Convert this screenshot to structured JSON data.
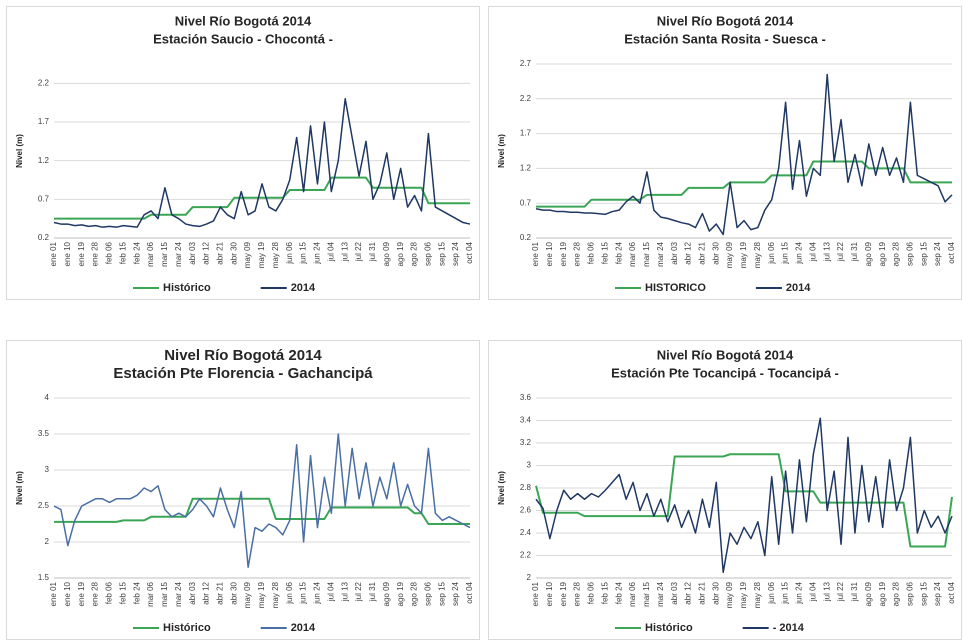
{
  "chart_data": [
    {
      "type": "line",
      "title": "Nivel Río Bogotá  2014",
      "subtitle": "Estación Saucio - Chocontá -",
      "ylabel": "Nivel (m)",
      "categories": [
        "ene 01",
        null,
        "ene 10",
        null,
        "ene 19",
        null,
        "ene 28",
        null,
        "feb 06",
        null,
        "feb 15",
        null,
        "feb 24",
        null,
        "mar 06",
        null,
        "mar 15",
        null,
        "mar 24",
        null,
        "abr 03",
        null,
        "abr 12",
        null,
        "abr 21",
        null,
        "abr 30",
        null,
        "may 09",
        null,
        "may 19",
        null,
        "may 28",
        null,
        "jun 06",
        null,
        "jun 15",
        null,
        "jun 24",
        null,
        "jul 04",
        null,
        "jul 13",
        null,
        "jul 22",
        null,
        "jul 31",
        null,
        "ago 09",
        null,
        "ago 19",
        null,
        "ago 28",
        null,
        "sep 06",
        null,
        "sep 15",
        null,
        "sep 24",
        null,
        "oct 04"
      ],
      "series": [
        {
          "name": "Histórico",
          "color": "#3aa655",
          "values": [
            0.45,
            0.45,
            0.45,
            0.45,
            0.45,
            0.45,
            0.45,
            0.45,
            0.45,
            0.45,
            0.45,
            0.45,
            0.45,
            0.45,
            0.5,
            0.5,
            0.5,
            0.5,
            0.5,
            0.5,
            0.6,
            0.6,
            0.6,
            0.6,
            0.6,
            0.6,
            0.72,
            0.72,
            0.72,
            0.72,
            0.72,
            0.72,
            0.72,
            0.72,
            0.82,
            0.82,
            0.82,
            0.82,
            0.82,
            0.82,
            0.98,
            0.98,
            0.98,
            0.98,
            0.98,
            0.98,
            0.85,
            0.85,
            0.85,
            0.85,
            0.85,
            0.85,
            0.85,
            0.85,
            0.65,
            0.65,
            0.65,
            0.65,
            0.65,
            0.65,
            0.65
          ]
        },
        {
          "name": "2014",
          "color": "#1f3864",
          "values": [
            0.4,
            0.38,
            0.38,
            0.36,
            0.37,
            0.35,
            0.36,
            0.34,
            0.35,
            0.34,
            0.36,
            0.35,
            0.34,
            0.5,
            0.55,
            0.45,
            0.85,
            0.5,
            0.45,
            0.38,
            0.36,
            0.35,
            0.38,
            0.42,
            0.6,
            0.5,
            0.45,
            0.8,
            0.5,
            0.55,
            0.9,
            0.6,
            0.55,
            0.7,
            0.95,
            1.5,
            0.8,
            1.65,
            0.9,
            1.7,
            0.8,
            1.2,
            2.0,
            1.5,
            1.0,
            1.45,
            0.7,
            0.9,
            1.3,
            0.7,
            1.1,
            0.6,
            0.75,
            0.55,
            1.55,
            0.6,
            0.55,
            0.5,
            0.45,
            0.4,
            0.38
          ]
        }
      ],
      "ylim": [
        0.2,
        2.45
      ],
      "yticks": [
        0.2,
        0.7,
        1.2,
        1.7,
        2.2
      ],
      "grid": true
    },
    {
      "type": "line",
      "title": "Nivel Río Bogotá 2014",
      "subtitle": "Estación Santa Rosita - Suesca -",
      "ylabel": "Nivel (m)",
      "categories": [
        "ene 01",
        null,
        "ene 10",
        null,
        "ene 19",
        null,
        "ene 28",
        null,
        "feb 06",
        null,
        "feb 15",
        null,
        "feb 24",
        null,
        "mar 06",
        null,
        "mar 15",
        null,
        "mar 24",
        null,
        "abr 03",
        null,
        "abr 12",
        null,
        "abr 21",
        null,
        "abr 30",
        null,
        "may 09",
        null,
        "may 19",
        null,
        "may 28",
        null,
        "jun 06",
        null,
        "jun 15",
        null,
        "jun 24",
        null,
        "jul 04",
        null,
        "jul 13",
        null,
        "jul 22",
        null,
        "jul 31",
        null,
        "ago 09",
        null,
        "ago 19",
        null,
        "ago 28",
        null,
        "sep 06",
        null,
        "sep 15",
        null,
        "sep 24",
        null,
        "oct 04"
      ],
      "series": [
        {
          "name": "HISTORICO",
          "color": "#3aa655",
          "values": [
            0.65,
            0.65,
            0.65,
            0.65,
            0.65,
            0.65,
            0.65,
            0.65,
            0.75,
            0.75,
            0.75,
            0.75,
            0.75,
            0.75,
            0.75,
            0.75,
            0.82,
            0.82,
            0.82,
            0.82,
            0.82,
            0.82,
            0.92,
            0.92,
            0.92,
            0.92,
            0.92,
            0.92,
            1.0,
            1.0,
            1.0,
            1.0,
            1.0,
            1.0,
            1.1,
            1.1,
            1.1,
            1.1,
            1.1,
            1.1,
            1.3,
            1.3,
            1.3,
            1.3,
            1.3,
            1.3,
            1.3,
            1.3,
            1.2,
            1.2,
            1.2,
            1.2,
            1.2,
            1.2,
            1.0,
            1.0,
            1.0,
            1.0,
            1.0,
            1.0,
            1.0
          ]
        },
        {
          "name": "2014",
          "color": "#1f3864",
          "values": [
            0.62,
            0.6,
            0.6,
            0.58,
            0.58,
            0.57,
            0.57,
            0.56,
            0.56,
            0.55,
            0.54,
            0.58,
            0.6,
            0.72,
            0.8,
            0.7,
            1.15,
            0.6,
            0.5,
            0.48,
            0.45,
            0.42,
            0.4,
            0.35,
            0.55,
            0.3,
            0.4,
            0.25,
            1.0,
            0.35,
            0.45,
            0.32,
            0.35,
            0.6,
            0.75,
            1.2,
            2.15,
            0.9,
            1.6,
            0.8,
            1.2,
            1.1,
            2.55,
            1.3,
            1.9,
            1.0,
            1.4,
            0.95,
            1.55,
            1.1,
            1.5,
            1.1,
            1.35,
            1.0,
            2.15,
            1.1,
            1.05,
            1.0,
            0.95,
            0.72,
            0.82
          ]
        }
      ],
      "ylim": [
        0.2,
        2.7
      ],
      "yticks": [
        0.2,
        0.7,
        1.2,
        1.7,
        2.2,
        2.7
      ],
      "grid": true
    },
    {
      "type": "line",
      "title": "Nivel Río Bogotá 2014",
      "subtitle": "Estación Pte Florencia - Gachancipá",
      "ylabel": "Nivel (m)",
      "categories": [
        "ene 01",
        null,
        "ene 10",
        null,
        "ene 19",
        null,
        "ene 28",
        null,
        "feb 06",
        null,
        "feb 15",
        null,
        "feb 24",
        null,
        "mar 06",
        null,
        "mar 15",
        null,
        "mar 24",
        null,
        "abr 03",
        null,
        "abr 12",
        null,
        "abr 21",
        null,
        "abr 30",
        null,
        "may 09",
        null,
        "may 19",
        null,
        "may 28",
        null,
        "jun 06",
        null,
        "jun 15",
        null,
        "jun 24",
        null,
        "jul 04",
        null,
        "jul 13",
        null,
        "jul 22",
        null,
        "jul 31",
        null,
        "ago 09",
        null,
        "ago 19",
        null,
        "ago 28",
        null,
        "sep 06",
        null,
        "sep 15",
        null,
        "sep 24",
        null,
        "oct 04"
      ],
      "series": [
        {
          "name": "Histórico",
          "color": "#3aa655",
          "values": [
            2.28,
            2.28,
            2.28,
            2.28,
            2.28,
            2.28,
            2.28,
            2.28,
            2.28,
            2.28,
            2.3,
            2.3,
            2.3,
            2.3,
            2.35,
            2.35,
            2.35,
            2.35,
            2.35,
            2.35,
            2.6,
            2.6,
            2.6,
            2.6,
            2.6,
            2.6,
            2.6,
            2.6,
            2.6,
            2.6,
            2.6,
            2.6,
            2.32,
            2.32,
            2.32,
            2.32,
            2.32,
            2.32,
            2.32,
            2.32,
            2.48,
            2.48,
            2.48,
            2.48,
            2.48,
            2.48,
            2.48,
            2.48,
            2.48,
            2.48,
            2.48,
            2.48,
            2.4,
            2.4,
            2.25,
            2.25,
            2.25,
            2.25,
            2.25,
            2.25,
            2.25
          ]
        },
        {
          "name": "2014",
          "color": "#4a6fa5",
          "values": [
            2.5,
            2.45,
            1.95,
            2.3,
            2.5,
            2.55,
            2.6,
            2.6,
            2.55,
            2.6,
            2.6,
            2.6,
            2.65,
            2.75,
            2.7,
            2.78,
            2.45,
            2.35,
            2.4,
            2.35,
            2.45,
            2.6,
            2.5,
            2.35,
            2.75,
            2.45,
            2.2,
            2.7,
            1.65,
            2.2,
            2.15,
            2.25,
            2.2,
            2.1,
            2.3,
            3.35,
            2.0,
            3.2,
            2.2,
            2.9,
            2.4,
            3.5,
            2.5,
            3.3,
            2.6,
            3.1,
            2.5,
            2.9,
            2.6,
            3.1,
            2.5,
            2.8,
            2.5,
            2.4,
            3.3,
            2.4,
            2.3,
            2.35,
            2.3,
            2.25,
            2.2
          ]
        }
      ],
      "ylim": [
        1.5,
        4
      ],
      "yticks": [
        1.5,
        2,
        2.5,
        3,
        3.5,
        4
      ],
      "grid": true
    },
    {
      "type": "line",
      "title": "Nivel Río Bogotá 2014",
      "subtitle": "Estación Pte Tocancipá - Tocancipá -",
      "ylabel": "Nivel (m)",
      "categories": [
        "ene 01",
        null,
        "ene 10",
        null,
        "ene 19",
        null,
        "ene 28",
        null,
        "feb 06",
        null,
        "feb 15",
        null,
        "feb 24",
        null,
        "mar 06",
        null,
        "mar 15",
        null,
        "mar 24",
        null,
        "abr 03",
        null,
        "abr 12",
        null,
        "abr 21",
        null,
        "abr 30",
        null,
        "may 09",
        null,
        "may 19",
        null,
        "may 28",
        null,
        "jun 06",
        null,
        "jun 15",
        null,
        "jun 24",
        null,
        "jul 04",
        null,
        "jul 13",
        null,
        "jul 22",
        null,
        "jul 31",
        null,
        "ago 09",
        null,
        "ago 19",
        null,
        "ago 28",
        null,
        "sep 06",
        null,
        "sep 15",
        null,
        "sep 24",
        null,
        "oct 04"
      ],
      "series": [
        {
          "name": "Histórico",
          "color": "#3aa655",
          "values": [
            2.82,
            2.58,
            2.58,
            2.58,
            2.58,
            2.58,
            2.58,
            2.55,
            2.55,
            2.55,
            2.55,
            2.55,
            2.55,
            2.55,
            2.55,
            2.55,
            2.55,
            2.55,
            2.55,
            2.55,
            3.08,
            3.08,
            3.08,
            3.08,
            3.08,
            3.08,
            3.08,
            3.08,
            3.1,
            3.1,
            3.1,
            3.1,
            3.1,
            3.1,
            3.1,
            3.1,
            2.77,
            2.77,
            2.77,
            2.77,
            2.77,
            2.67,
            2.67,
            2.67,
            2.67,
            2.67,
            2.67,
            2.67,
            2.67,
            2.67,
            2.67,
            2.67,
            2.67,
            2.67,
            2.28,
            2.28,
            2.28,
            2.28,
            2.28,
            2.28,
            2.72
          ]
        },
        {
          "name": "- 2014",
          "color": "#1f3864",
          "values": [
            2.7,
            2.62,
            2.35,
            2.6,
            2.78,
            2.7,
            2.75,
            2.7,
            2.75,
            2.72,
            2.78,
            2.85,
            2.92,
            2.7,
            2.85,
            2.6,
            2.75,
            2.55,
            2.7,
            2.5,
            2.65,
            2.45,
            2.6,
            2.4,
            2.7,
            2.45,
            2.85,
            2.05,
            2.4,
            2.3,
            2.45,
            2.35,
            2.5,
            2.2,
            2.9,
            2.3,
            2.95,
            2.4,
            3.05,
            2.5,
            3.1,
            3.42,
            2.6,
            2.95,
            2.3,
            3.25,
            2.4,
            3.0,
            2.5,
            2.9,
            2.45,
            3.05,
            2.6,
            2.8,
            3.25,
            2.4,
            2.6,
            2.45,
            2.55,
            2.4,
            2.55
          ]
        }
      ],
      "ylim": [
        2,
        3.6
      ],
      "yticks": [
        2,
        2.2,
        2.4,
        2.6,
        2.8,
        3,
        3.2,
        3.4,
        3.6
      ],
      "grid": true
    }
  ]
}
